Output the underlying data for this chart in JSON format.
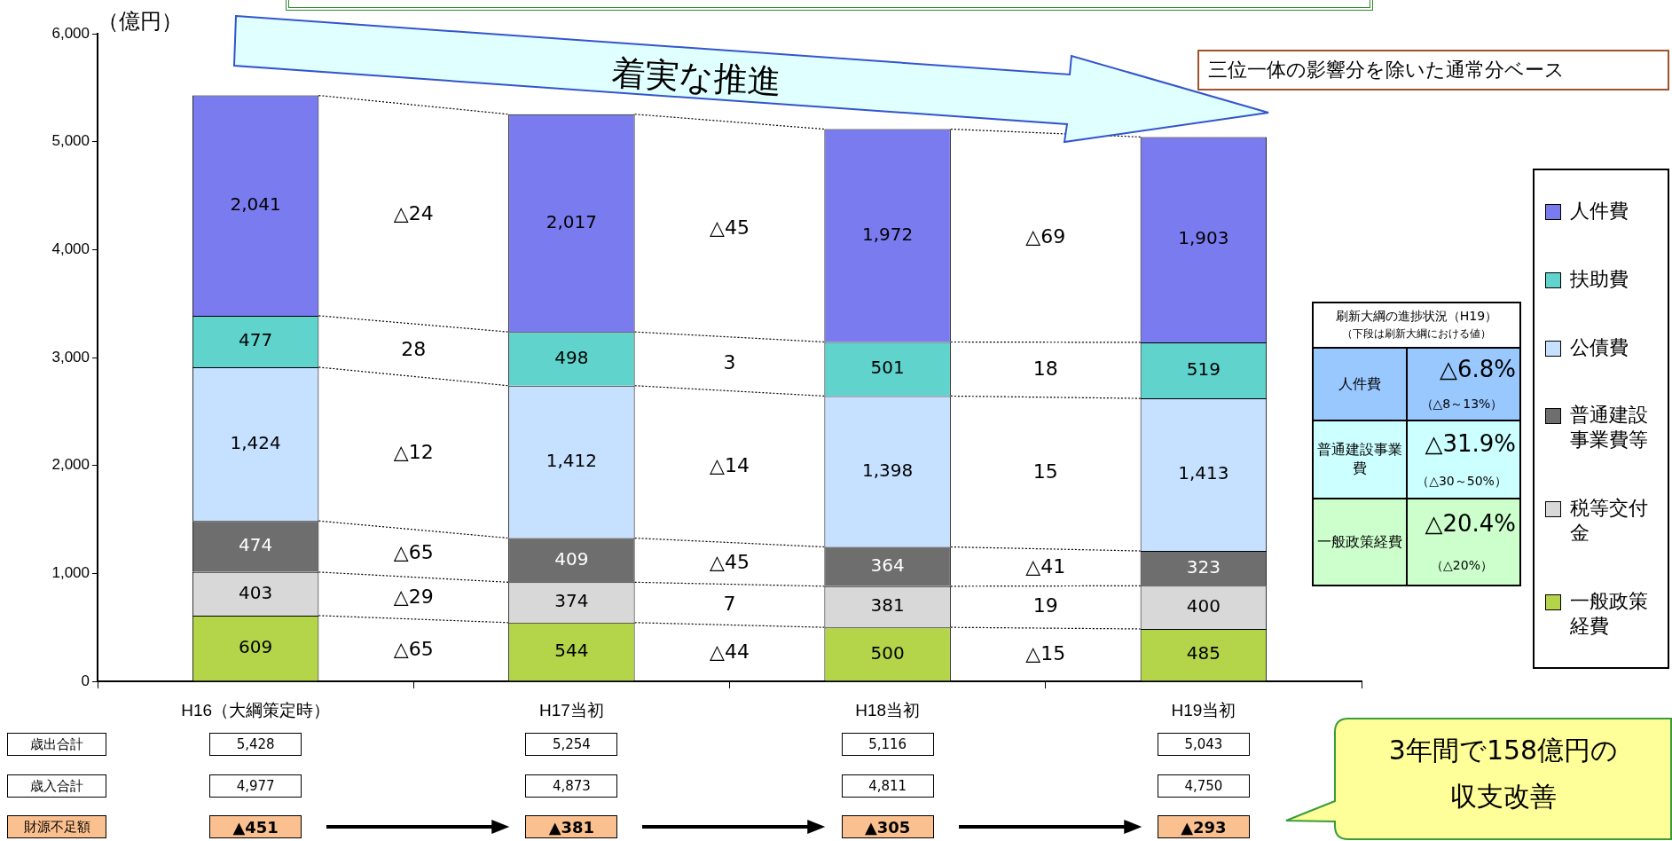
{
  "chart_data": {
    "type": "bar",
    "stacked": true,
    "ylabel": "（億円）",
    "categories": [
      "H16（大綱策定時）",
      "H17当初",
      "H18当初",
      "H19当初"
    ],
    "series": [
      {
        "name": "一般政策経費",
        "color": "#b4d44a",
        "values": [
          609,
          544,
          500,
          485
        ],
        "value_labels": [
          "609",
          "544",
          "500",
          "485"
        ]
      },
      {
        "name": "税等交付金",
        "color": "#d8d8d8",
        "values": [
          403,
          374,
          381,
          400
        ],
        "value_labels": [
          "403",
          "374",
          "381",
          "400"
        ]
      },
      {
        "name": "普通建設事業費等",
        "color": "#6e6e6e",
        "values": [
          474,
          409,
          364,
          323
        ],
        "value_labels": [
          "474",
          "409",
          "364",
          "323"
        ]
      },
      {
        "name": "公債費",
        "color": "#c6e0ff",
        "values": [
          1424,
          1412,
          1398,
          1413
        ],
        "value_labels": [
          "1,424",
          "1,412",
          "1,398",
          "1,413"
        ]
      },
      {
        "name": "扶助費",
        "color": "#5fd3cc",
        "values": [
          477,
          498,
          501,
          519
        ],
        "value_labels": [
          "477",
          "498",
          "501",
          "519"
        ]
      },
      {
        "name": "人件費",
        "color": "#7b7bf0",
        "values": [
          2041,
          2017,
          1972,
          1903
        ],
        "value_labels": [
          "2,041",
          "2,017",
          "1,972",
          "1,903"
        ]
      }
    ],
    "ylim": [
      0,
      6000
    ],
    "yticks": [
      0,
      {
        "value": 1000,
        "label": "1,000"
      },
      {
        "value": 2000,
        "label": "2,000"
      },
      {
        "value": 3000,
        "label": "3,000"
      },
      {
        "value": 4000,
        "label": "4,000"
      },
      {
        "value": 5000,
        "label": "5,000"
      },
      {
        "value": 6000,
        "label": "6,000"
      }
    ],
    "grid": false,
    "legend": "right",
    "annotations": [
      "着実な推進",
      "三位一体の影響分を除いた通常分ベース",
      "△24",
      "28",
      "△12",
      "△65",
      "△29",
      "△65",
      "△45",
      "3",
      "△14",
      "△45",
      "7",
      "△44",
      "△69",
      "18",
      "15",
      "△41",
      "19",
      "△15",
      "歳出合計",
      "歳入合計",
      "財源不足額",
      "4,977",
      "4,873",
      "4,811",
      "4,750",
      "▲451",
      "▲381",
      "▲305",
      "▲293",
      "刷新大綱の進捗状況（H19）",
      "（下段は刷新大綱における値）",
      "人件費",
      "△6.8%",
      "（△8～13%）",
      "普通建設事業費",
      "△31.9%",
      "（△30～50%）",
      "一般政策経費",
      "△20.4%",
      "（△20%）",
      "3年間で158億円の",
      "収支改善",
      "5,428",
      "5,254",
      "5,116",
      "5,043"
    ]
  }
}
